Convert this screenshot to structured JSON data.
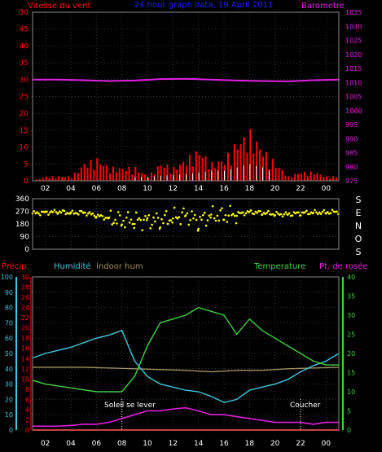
{
  "header": {
    "title": "24 hour graph data, 19 April 2011",
    "wind_label": "Vitesse du vent",
    "baro_label": "Barometre"
  },
  "direction_letters": [
    "S",
    "E",
    "N",
    "O",
    "S"
  ],
  "bottom_labels": {
    "precip": "Précip.",
    "humidity": "Humidité",
    "indoor_hum": "Indoor hum",
    "temperature": "Temperature",
    "dewpoint": "Pt. de rosée",
    "sunrise": "Soleil se lever",
    "sunset": "Coucher"
  },
  "colors": {
    "wind": "#ff0000",
    "gust": "#ffffff",
    "barometer": "#e020e0",
    "direction": "#ffff00",
    "humidity": "#40c8e0",
    "indoor_hum": "#a09060",
    "temperature": "#40d040",
    "dewpoint": "#e020e0",
    "precip": "#ff0000",
    "grid": "#3a3a3a",
    "axis_wind": "#ff0000",
    "axis_baro": "#e020e0",
    "axis_hum": "#40c8e0",
    "axis_temp": "#40d040"
  },
  "chart_data": [
    {
      "type": "line",
      "x_ticks": [
        "02",
        "04",
        "06",
        "08",
        "10",
        "12",
        "14",
        "16",
        "18",
        "20",
        "22",
        "00"
      ],
      "ylabel": "Vitesse du vent",
      "y2label": "Barometre",
      "ylim": [
        0,
        50
      ],
      "y_ticks": [
        0,
        5,
        10,
        15,
        20,
        25,
        30,
        35,
        40,
        45,
        50
      ],
      "y2lim": [
        975,
        1035
      ],
      "y2_ticks": [
        975,
        980,
        985,
        990,
        995,
        1000,
        1005,
        1010,
        1015,
        1020,
        1025,
        1030,
        1035
      ],
      "series": [
        {
          "name": "Barometre",
          "axis": "right",
          "x": [
            0,
            2,
            4,
            6,
            8,
            10,
            12,
            14,
            16,
            18,
            20,
            22,
            24
          ],
          "values": [
            1011.0,
            1011.0,
            1010.8,
            1010.5,
            1010.7,
            1011.2,
            1011.3,
            1011.0,
            1010.7,
            1010.5,
            1010.4,
            1010.8,
            1011.0
          ]
        },
        {
          "name": "Vitesse du vent",
          "axis": "left",
          "x": [
            0,
            1,
            2,
            3,
            4,
            5,
            6,
            7,
            8,
            9,
            10,
            11,
            12,
            13,
            14,
            15,
            16,
            17,
            18,
            19,
            20,
            21,
            22,
            23,
            24
          ],
          "values": [
            0,
            1,
            1,
            1,
            4,
            5,
            3,
            3,
            3,
            1,
            4,
            3,
            5,
            7,
            4,
            5,
            9,
            11,
            7,
            4,
            1,
            2,
            2,
            1,
            1
          ]
        },
        {
          "name": "Rafales",
          "axis": "left",
          "x": [
            8,
            12,
            14,
            15,
            16,
            17,
            18,
            19
          ],
          "values": [
            1,
            2,
            3,
            3,
            4,
            5,
            4,
            2
          ]
        }
      ]
    },
    {
      "type": "scatter",
      "x_ticks": [
        "02",
        "04",
        "06",
        "08",
        "10",
        "12",
        "14",
        "16",
        "18",
        "20",
        "22",
        "00"
      ],
      "ylim": [
        0,
        360
      ],
      "y_ticks": [
        0,
        90,
        180,
        270,
        360
      ],
      "series": [
        {
          "name": "Direction",
          "x": [
            0,
            1,
            2,
            3,
            4,
            5,
            6,
            7,
            8,
            9,
            10,
            11,
            12,
            13,
            14,
            15,
            16,
            17,
            18,
            19,
            20,
            21,
            22,
            23,
            24
          ],
          "values": [
            255,
            262,
            268,
            258,
            262,
            240,
            220,
            205,
            205,
            205,
            205,
            225,
            245,
            200,
            240,
            240,
            250,
            265,
            260,
            250,
            248,
            258,
            262,
            262,
            268
          ]
        }
      ]
    },
    {
      "type": "line",
      "x_ticks": [
        "02",
        "04",
        "06",
        "08",
        "10",
        "12",
        "14",
        "16",
        "18",
        "20",
        "22",
        "00"
      ],
      "ylabel": "Humidité",
      "y2label": "Temperature",
      "humidity_lim": [
        0,
        100
      ],
      "humidity_ticks": [
        0,
        10,
        20,
        30,
        40,
        50,
        60,
        70,
        80,
        90,
        100
      ],
      "precip_lim": [
        0,
        30
      ],
      "precip_ticks": [
        0,
        2,
        4,
        6,
        8,
        10,
        12,
        14,
        16,
        18,
        20,
        22,
        24,
        26,
        28,
        30
      ],
      "temp_lim": [
        0,
        40
      ],
      "temp_ticks": [
        0,
        5,
        10,
        15,
        20,
        25,
        30,
        35,
        40
      ],
      "series": [
        {
          "name": "Humidité",
          "axis": "humidity",
          "x": [
            0,
            1,
            2,
            3,
            4,
            5,
            6,
            7,
            8,
            9,
            10,
            11,
            12,
            13,
            14,
            15,
            16,
            17,
            18,
            19,
            20,
            21,
            22,
            23,
            24
          ],
          "values": [
            47,
            50,
            52,
            54,
            57,
            60,
            62,
            65,
            45,
            35,
            30,
            28,
            26,
            25,
            22,
            18,
            20,
            26,
            28,
            30,
            33,
            38,
            42,
            45,
            50
          ]
        },
        {
          "name": "Indoor hum",
          "axis": "humidity",
          "x": [
            0,
            4,
            8,
            12,
            14,
            16,
            18,
            20,
            24
          ],
          "values": [
            41,
            41,
            40,
            39,
            38,
            39,
            39,
            40,
            41
          ]
        },
        {
          "name": "Temperature",
          "axis": "temp",
          "x": [
            0,
            1,
            2,
            3,
            4,
            5,
            6,
            7,
            8,
            9,
            10,
            11,
            12,
            13,
            14,
            15,
            16,
            17,
            18,
            19,
            20,
            21,
            22,
            23,
            24
          ],
          "values": [
            13,
            12,
            11.5,
            11,
            10.5,
            10,
            10,
            10,
            14,
            22,
            28,
            29,
            30,
            32,
            31,
            30,
            25,
            29,
            26,
            24,
            22,
            20,
            18,
            17,
            17
          ]
        },
        {
          "name": "Pt. de rosée",
          "axis": "temp",
          "x": [
            0,
            1,
            2,
            3,
            4,
            5,
            6,
            7,
            8,
            9,
            10,
            11,
            12,
            13,
            14,
            15,
            16,
            17,
            18,
            19,
            20,
            21,
            22,
            23,
            24
          ],
          "values": [
            1,
            1,
            1,
            1.2,
            1.5,
            1.5,
            2,
            3,
            4,
            5,
            5,
            5.5,
            5.8,
            5,
            4,
            4,
            3.5,
            3,
            2.5,
            2,
            2,
            2,
            1.5,
            2,
            2
          ]
        },
        {
          "name": "Précip.",
          "axis": "precip",
          "x": [
            0,
            24
          ],
          "values": [
            0,
            0
          ]
        }
      ],
      "sunrise_hour": 7.0,
      "sunset_hour": 21.0
    }
  ]
}
